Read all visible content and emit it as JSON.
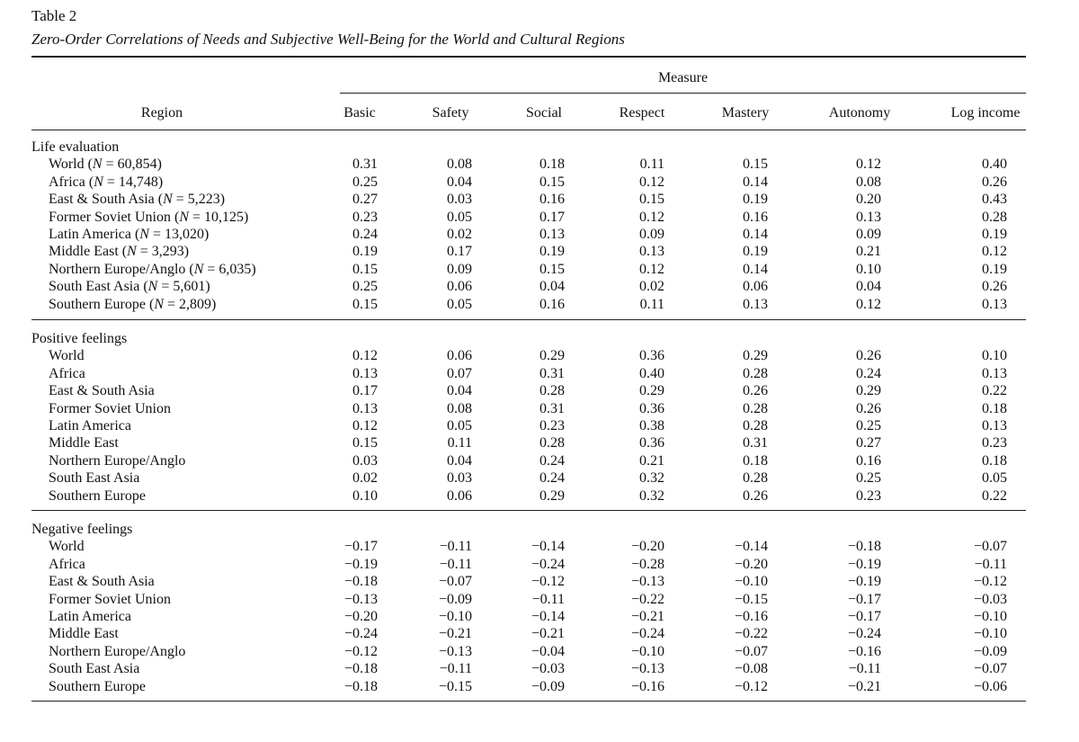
{
  "table_label": "Table 2",
  "table_title": "Zero-Order Correlations of Needs and Subjective Well-Being for the World and Cultural Regions",
  "measure_label": "Measure",
  "region_header": "Region",
  "columns": [
    "Basic",
    "Safety",
    "Social",
    "Respect",
    "Mastery",
    "Autonomy",
    "Log income"
  ],
  "sections": [
    {
      "title": "Life evaluation",
      "rows": [
        {
          "region": "World (N = 60,854)",
          "values": [
            "0.31",
            "0.08",
            "0.18",
            "0.11",
            "0.15",
            "0.12",
            "0.40"
          ]
        },
        {
          "region": "Africa (N = 14,748)",
          "values": [
            "0.25",
            "0.04",
            "0.15",
            "0.12",
            "0.14",
            "0.08",
            "0.26"
          ]
        },
        {
          "region": "East & South Asia (N = 5,223)",
          "values": [
            "0.27",
            "0.03",
            "0.16",
            "0.15",
            "0.19",
            "0.20",
            "0.43"
          ]
        },
        {
          "region": "Former Soviet Union (N = 10,125)",
          "values": [
            "0.23",
            "0.05",
            "0.17",
            "0.12",
            "0.16",
            "0.13",
            "0.28"
          ]
        },
        {
          "region": "Latin America (N = 13,020)",
          "values": [
            "0.24",
            "0.02",
            "0.13",
            "0.09",
            "0.14",
            "0.09",
            "0.19"
          ]
        },
        {
          "region": "Middle East (N = 3,293)",
          "values": [
            "0.19",
            "0.17",
            "0.19",
            "0.13",
            "0.19",
            "0.21",
            "0.12"
          ]
        },
        {
          "region": "Northern Europe/Anglo (N = 6,035)",
          "values": [
            "0.15",
            "0.09",
            "0.15",
            "0.12",
            "0.14",
            "0.10",
            "0.19"
          ]
        },
        {
          "region": "South East Asia (N = 5,601)",
          "values": [
            "0.25",
            "0.06",
            "0.04",
            "0.02",
            "0.06",
            "0.04",
            "0.26"
          ]
        },
        {
          "region": "Southern Europe (N = 2,809)",
          "values": [
            "0.15",
            "0.05",
            "0.16",
            "0.11",
            "0.13",
            "0.12",
            "0.13"
          ]
        }
      ]
    },
    {
      "title": "Positive feelings",
      "rows": [
        {
          "region": "World",
          "values": [
            "0.12",
            "0.06",
            "0.29",
            "0.36",
            "0.29",
            "0.26",
            "0.10"
          ]
        },
        {
          "region": "Africa",
          "values": [
            "0.13",
            "0.07",
            "0.31",
            "0.40",
            "0.28",
            "0.24",
            "0.13"
          ]
        },
        {
          "region": "East & South Asia",
          "values": [
            "0.17",
            "0.04",
            "0.28",
            "0.29",
            "0.26",
            "0.29",
            "0.22"
          ]
        },
        {
          "region": "Former Soviet Union",
          "values": [
            "0.13",
            "0.08",
            "0.31",
            "0.36",
            "0.28",
            "0.26",
            "0.18"
          ]
        },
        {
          "region": "Latin America",
          "values": [
            "0.12",
            "0.05",
            "0.23",
            "0.38",
            "0.28",
            "0.25",
            "0.13"
          ]
        },
        {
          "region": "Middle East",
          "values": [
            "0.15",
            "0.11",
            "0.28",
            "0.36",
            "0.31",
            "0.27",
            "0.23"
          ]
        },
        {
          "region": "Northern Europe/Anglo",
          "values": [
            "0.03",
            "0.04",
            "0.24",
            "0.21",
            "0.18",
            "0.16",
            "0.18"
          ]
        },
        {
          "region": "South East Asia",
          "values": [
            "0.02",
            "0.03",
            "0.24",
            "0.32",
            "0.28",
            "0.25",
            "0.05"
          ]
        },
        {
          "region": "Southern Europe",
          "values": [
            "0.10",
            "0.06",
            "0.29",
            "0.32",
            "0.26",
            "0.23",
            "0.22"
          ]
        }
      ]
    },
    {
      "title": "Negative feelings",
      "rows": [
        {
          "region": "World",
          "values": [
            "−0.17",
            "−0.11",
            "−0.14",
            "−0.20",
            "−0.14",
            "−0.18",
            "−0.07"
          ]
        },
        {
          "region": "Africa",
          "values": [
            "−0.19",
            "−0.11",
            "−0.24",
            "−0.28",
            "−0.20",
            "−0.19",
            "−0.11"
          ]
        },
        {
          "region": "East & South Asia",
          "values": [
            "−0.18",
            "−0.07",
            "−0.12",
            "−0.13",
            "−0.10",
            "−0.19",
            "−0.12"
          ]
        },
        {
          "region": "Former Soviet Union",
          "values": [
            "−0.13",
            "−0.09",
            "−0.11",
            "−0.22",
            "−0.15",
            "−0.17",
            "−0.03"
          ]
        },
        {
          "region": "Latin America",
          "values": [
            "−0.20",
            "−0.10",
            "−0.14",
            "−0.21",
            "−0.16",
            "−0.17",
            "−0.10"
          ]
        },
        {
          "region": "Middle East",
          "values": [
            "−0.24",
            "−0.21",
            "−0.21",
            "−0.24",
            "−0.22",
            "−0.24",
            "−0.10"
          ]
        },
        {
          "region": "Northern Europe/Anglo",
          "values": [
            "−0.12",
            "−0.13",
            "−0.04",
            "−0.10",
            "−0.07",
            "−0.16",
            "−0.09"
          ]
        },
        {
          "region": "South East Asia",
          "values": [
            "−0.18",
            "−0.11",
            "−0.03",
            "−0.13",
            "−0.08",
            "−0.11",
            "−0.07"
          ]
        },
        {
          "region": "Southern Europe",
          "values": [
            "−0.18",
            "−0.15",
            "−0.09",
            "−0.16",
            "−0.12",
            "−0.21",
            "−0.06"
          ]
        }
      ]
    }
  ]
}
